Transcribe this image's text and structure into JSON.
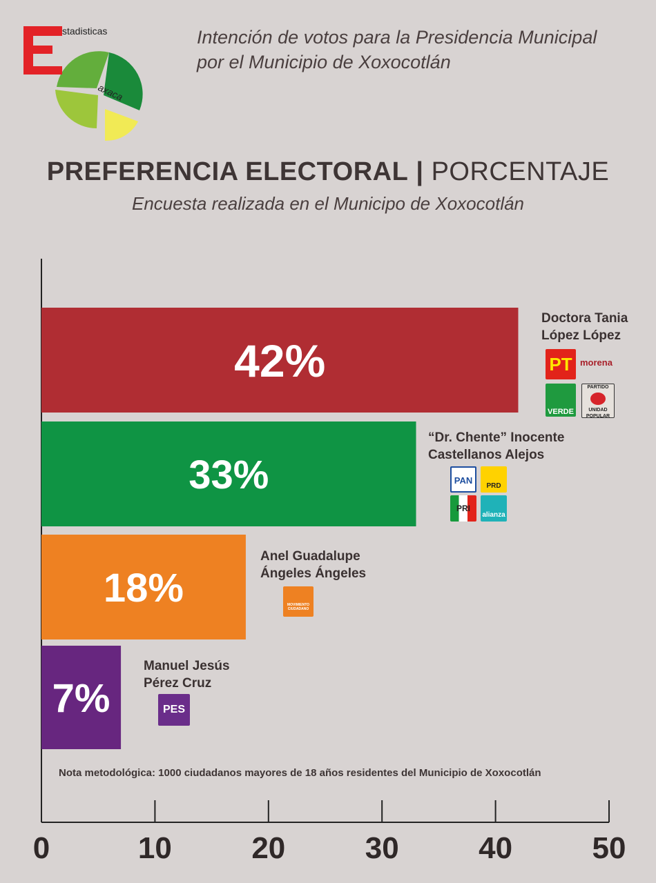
{
  "header": {
    "logo_text_top": "stadisticas",
    "logo_letter": "E",
    "logo_text_bottom": "axaca",
    "line1": "Intención de votos para la Presidencia Municipal",
    "line2": "por el Municipio de Xoxocotlán"
  },
  "chart_data": {
    "type": "bar",
    "orientation": "horizontal",
    "title": "PREFERENCIA ELECTORAL",
    "title_suffix": "PORCENTAJE",
    "subtitle": "Encuesta realizada en el Municipo de Xoxocotlán",
    "categories": [
      "Doctora Tania López López",
      "“Dr. Chente” Inocente Castellanos Alejos",
      "Anel Guadalupe Ángeles Ángeles",
      "Manuel Jesús Pérez Cruz"
    ],
    "label_lines": [
      [
        "Doctora Tania",
        "López López"
      ],
      [
        "“Dr. Chente” Inocente",
        "Castellanos Alejos"
      ],
      [
        "Anel Guadalupe",
        "Ángeles Ángeles"
      ],
      [
        "Manuel Jesús",
        "Pérez Cruz"
      ]
    ],
    "values": [
      42,
      33,
      18,
      7
    ],
    "value_labels": [
      "42%",
      "33%",
      "18%",
      "7%"
    ],
    "colors": [
      "#b02d33",
      "#0f9444",
      "#ee8122",
      "#67267f"
    ],
    "xlim": [
      0,
      50
    ],
    "xticks": [
      0,
      10,
      20,
      30,
      40,
      50
    ],
    "xtick_labels": [
      "0",
      "10",
      "20",
      "30",
      "40",
      "50"
    ],
    "grid": false
  },
  "parties": {
    "pt": "PT",
    "morena": "morena",
    "verde": "VERDE",
    "pup_top": "PARTIDO",
    "pup_bottom": "UNIDAD POPULAR",
    "pan": "PAN",
    "prd": "PRD",
    "pri": "PRI",
    "alianza": "alianza",
    "mc": "MOVIMIENTO CIUDADANO",
    "pes": "PES"
  },
  "note": "Nota metodológica: 1000 ciudadanos mayores de 18 años residentes del Municipio de Xoxocotlán"
}
